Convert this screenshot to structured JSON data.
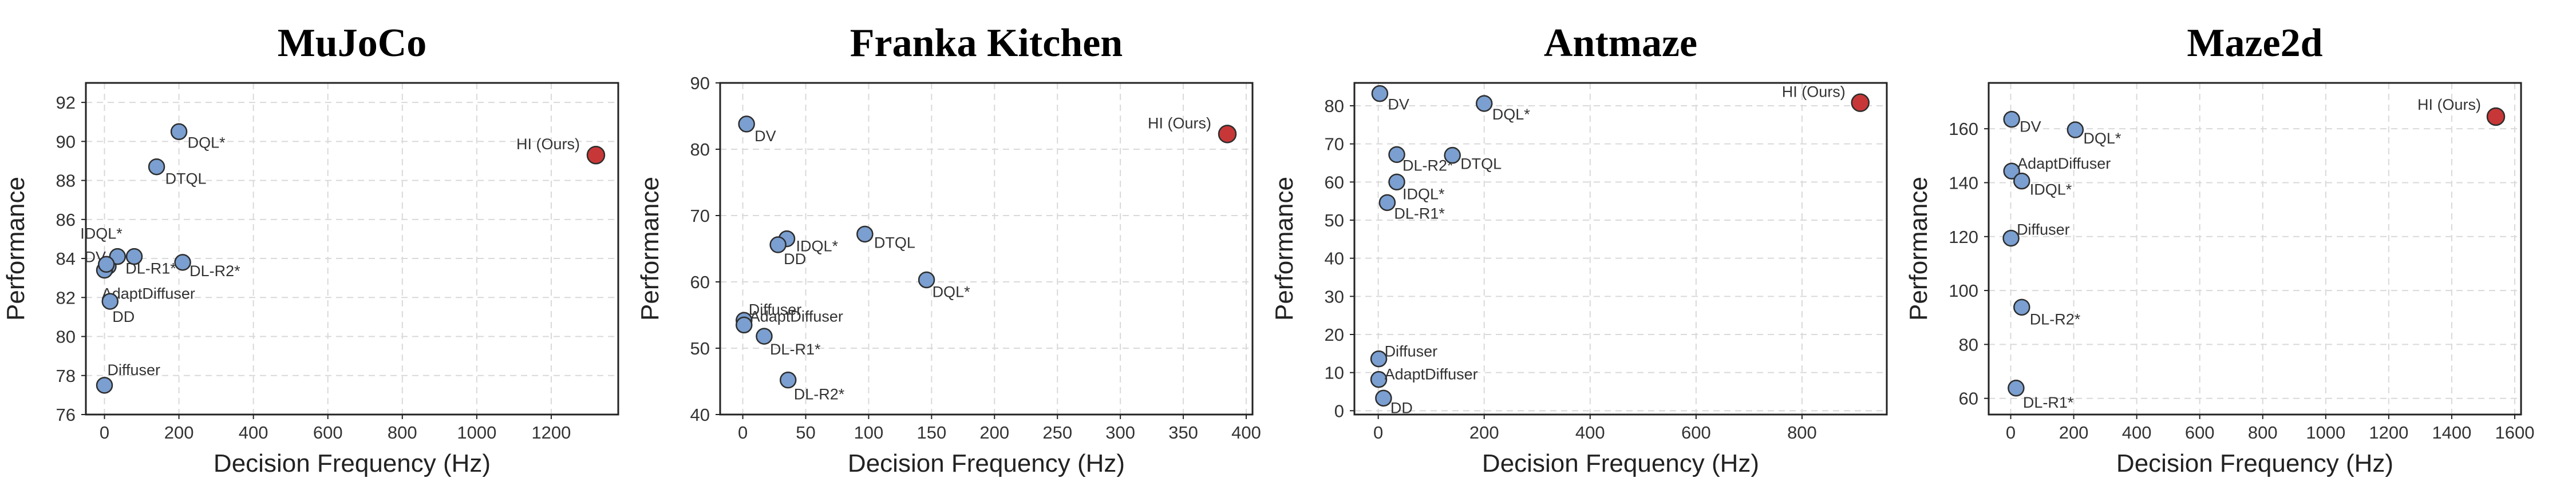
{
  "colors": {
    "baseline": "#7a9fd0",
    "ours": "#c83737"
  },
  "chart_data": [
    {
      "type": "scatter",
      "title": "MuJoCo",
      "xlabel": "Decision Frequency (Hz)",
      "ylabel": "Performance",
      "xlim": [
        -50,
        1380
      ],
      "ylim": [
        76,
        93
      ],
      "xticks": [
        0,
        200,
        400,
        600,
        800,
        1000,
        1200
      ],
      "yticks": [
        76,
        78,
        80,
        82,
        84,
        86,
        88,
        90,
        92
      ],
      "grid": true,
      "points": [
        {
          "label": "HI (Ours)",
          "x": 1320,
          "y": 89.3,
          "highlight": true
        },
        {
          "label": "DQL*",
          "x": 200,
          "y": 90.5
        },
        {
          "label": "DTQL",
          "x": 140,
          "y": 88.7
        },
        {
          "label": "IDQL*",
          "x": 10,
          "y": 83.6
        },
        {
          "label": "DV",
          "x": 0,
          "y": 83.4
        },
        {
          "label": "DL-R1*",
          "x": 35,
          "y": 84.1
        },
        {
          "label": "DL-R2*",
          "x": 210,
          "y": 83.8
        },
        {
          "label": "",
          "x": 80,
          "y": 84.1
        },
        {
          "label": "AdaptDiffuser",
          "x": 5,
          "y": 83.7
        },
        {
          "label": "DD",
          "x": 15,
          "y": 81.8
        },
        {
          "label": "Diffuser",
          "x": 0,
          "y": 77.5
        }
      ]
    },
    {
      "type": "scatter",
      "title": "Franka Kitchen",
      "xlabel": "Decision Frequency (Hz)",
      "ylabel": "Performance",
      "xlim": [
        -18,
        405
      ],
      "ylim": [
        40,
        90
      ],
      "xticks": [
        0,
        50,
        100,
        150,
        200,
        250,
        300,
        350,
        400
      ],
      "yticks": [
        40,
        50,
        60,
        70,
        80,
        90
      ],
      "grid": true,
      "points": [
        {
          "label": "HI (Ours)",
          "x": 385,
          "y": 82.3,
          "highlight": true
        },
        {
          "label": "DV",
          "x": 3,
          "y": 83.8
        },
        {
          "label": "DTQL",
          "x": 97,
          "y": 67.2
        },
        {
          "label": "IDQL*",
          "x": 35,
          "y": 66.5
        },
        {
          "label": "DD",
          "x": 28,
          "y": 65.6
        },
        {
          "label": "DQL*",
          "x": 146,
          "y": 60.3
        },
        {
          "label": "Diffuser",
          "x": 1,
          "y": 54.2
        },
        {
          "label": "AdaptDiffuser",
          "x": 1,
          "y": 53.5
        },
        {
          "label": "DL-R1*",
          "x": 17,
          "y": 51.8
        },
        {
          "label": "DL-R2*",
          "x": 36,
          "y": 45.2
        }
      ]
    },
    {
      "type": "scatter",
      "title": "Antmaze",
      "xlabel": "Decision Frequency (Hz)",
      "ylabel": "Performance",
      "xlim": [
        -45,
        960
      ],
      "ylim": [
        -1,
        86
      ],
      "xticks": [
        0,
        200,
        400,
        600,
        800
      ],
      "yticks": [
        0,
        10,
        20,
        30,
        40,
        50,
        60,
        70,
        80
      ],
      "grid": true,
      "points": [
        {
          "label": "HI (Ours)",
          "x": 910,
          "y": 80.8,
          "highlight": true
        },
        {
          "label": "DV",
          "x": 3,
          "y": 83.2
        },
        {
          "label": "DQL*",
          "x": 200,
          "y": 80.6
        },
        {
          "label": "DL-R2*",
          "x": 35,
          "y": 67.2
        },
        {
          "label": "DTQL",
          "x": 140,
          "y": 67.0
        },
        {
          "label": "IDQL*",
          "x": 35,
          "y": 60.0
        },
        {
          "label": "DL-R1*",
          "x": 17,
          "y": 54.6
        },
        {
          "label": "Diffuser",
          "x": 1,
          "y": 13.6
        },
        {
          "label": "AdaptDiffuser",
          "x": 1,
          "y": 8.2
        },
        {
          "label": "DD",
          "x": 10,
          "y": 3.3
        }
      ]
    },
    {
      "type": "scatter",
      "title": "Maze2d",
      "xlabel": "Decision Frequency (Hz)",
      "ylabel": "Performance",
      "xlim": [
        -70,
        1620
      ],
      "ylim": [
        54,
        177
      ],
      "xticks": [
        0,
        200,
        400,
        600,
        800,
        1000,
        1200,
        1400,
        1600
      ],
      "yticks": [
        60,
        80,
        100,
        120,
        140,
        160
      ],
      "grid": true,
      "points": [
        {
          "label": "HI (Ours)",
          "x": 1540,
          "y": 164.5,
          "highlight": true
        },
        {
          "label": "DV",
          "x": 3,
          "y": 163.5
        },
        {
          "label": "DQL*",
          "x": 205,
          "y": 159.6
        },
        {
          "label": "AdaptDiffuser",
          "x": 3,
          "y": 144.3
        },
        {
          "label": "IDQL*",
          "x": 35,
          "y": 140.6
        },
        {
          "label": "Diffuser",
          "x": 1,
          "y": 119.4
        },
        {
          "label": "DL-R2*",
          "x": 35,
          "y": 93.8
        },
        {
          "label": "DL-R1*",
          "x": 17,
          "y": 63.8
        }
      ]
    }
  ]
}
